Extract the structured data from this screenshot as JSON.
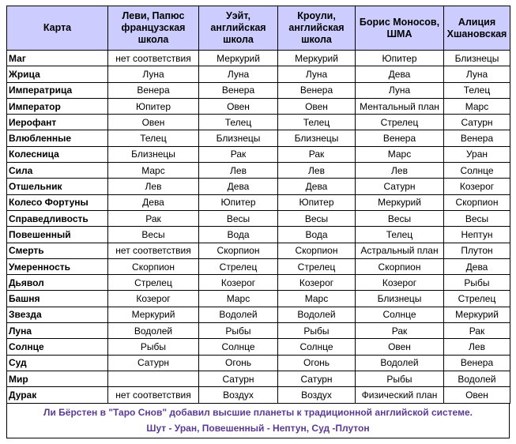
{
  "table": {
    "headers": [
      "Карта",
      "Леви, Папюс французская школа",
      "Уэйт, английская школа",
      "Кроули, английская школа",
      "Борис Моносов, ШМА",
      "Алиция Хшановская"
    ],
    "rows": [
      [
        "Маг",
        "нет соответствия",
        "Меркурий",
        "Меркурий",
        "Юпитер",
        "Близнецы"
      ],
      [
        "Жрица",
        "Луна",
        "Луна",
        "Луна",
        "Дева",
        "Луна"
      ],
      [
        "Императрица",
        "Венера",
        "Венера",
        "Венера",
        "Луна",
        "Телец"
      ],
      [
        "Император",
        "Юпитер",
        "Овен",
        "Овен",
        "Ментальный план",
        "Марс"
      ],
      [
        "Иерофант",
        "Овен",
        "Телец",
        "Телец",
        "Стрелец",
        "Сатурн"
      ],
      [
        "Влюбленные",
        "Телец",
        "Близнецы",
        "Близнецы",
        "Венера",
        "Венера"
      ],
      [
        "Колесница",
        "Близнецы",
        "Рак",
        "Рак",
        "Марс",
        "Уран"
      ],
      [
        "Сила",
        "Марс",
        "Лев",
        "Лев",
        "Лев",
        "Солнце"
      ],
      [
        "Отшельник",
        "Лев",
        "Дева",
        "Дева",
        "Сатурн",
        "Козерог"
      ],
      [
        "Колесо Фортуны",
        "Дева",
        "Юпитер",
        "Юпитер",
        "Меркурий",
        "Скорпион"
      ],
      [
        "Справедливость",
        "Рак",
        "Весы",
        "Весы",
        "Весы",
        "Весы"
      ],
      [
        "Повешенный",
        "Весы",
        "Вода",
        "Вода",
        "Телец",
        "Нептун"
      ],
      [
        "Смерть",
        "нет соответствия",
        "Скорпион",
        "Скорпион",
        "Астральный план",
        "Плутон"
      ],
      [
        "Умеренность",
        "Скорпион",
        "Стрелец",
        "Стрелец",
        "Скорпион",
        "Дева"
      ],
      [
        "Дьявол",
        "Стрелец",
        "Козерог",
        "Козерог",
        "Козерог",
        "Рыбы"
      ],
      [
        "Башня",
        "Козерог",
        "Марс",
        "Марс",
        "Близнецы",
        "Стрелец"
      ],
      [
        "Звезда",
        "Меркурий",
        "Водолей",
        "Водолей",
        "Солнце",
        "Меркурий"
      ],
      [
        "Луна",
        "Водолей",
        "Рыбы",
        "Рыбы",
        "Рак",
        "Рак"
      ],
      [
        "Солнце",
        "Рыбы",
        "Солнце",
        "Солнце",
        "Овен",
        "Лев"
      ],
      [
        "Суд",
        "Сатурн",
        "Огонь",
        "Огонь",
        "Водолей",
        "Венера"
      ],
      [
        "Мир",
        "",
        "Сатурн",
        "Сатурн",
        "Рыбы",
        "Водолей"
      ],
      [
        "Дурак",
        "нет соответствия",
        "Воздух",
        "Воздух",
        "Физический план",
        "Овен"
      ]
    ]
  },
  "footnote": {
    "line1": "Ли Бёрстен в \"Таро Снов\" добавил высшие планеты к традиционной английской системе.",
    "line2": "Шут - Уран, Повешенный - Нептун, Суд  -Плутон"
  },
  "colors": {
    "header_bg": "#ccccff",
    "footnote_text": "#5b3a93"
  }
}
